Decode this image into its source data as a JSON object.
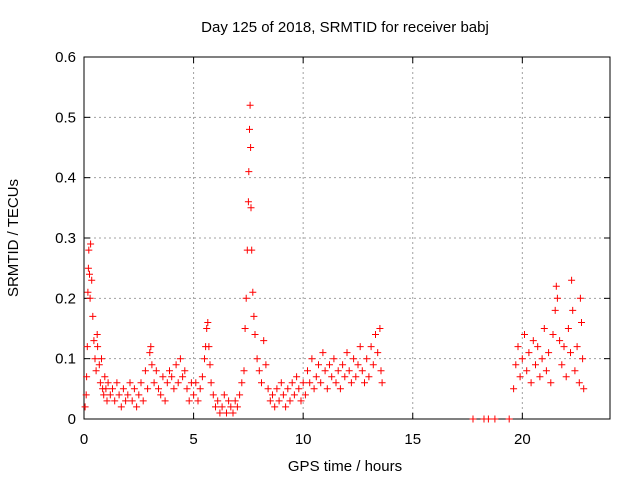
{
  "chart_data": {
    "type": "scatter",
    "title": "Day 125 of 2018, SRMTID for receiver babj",
    "xlabel": "GPS time / hours",
    "ylabel": "SRMTID / TECUs",
    "xlim": [
      0,
      24
    ],
    "ylim": [
      0,
      0.6
    ],
    "xticks": [
      0,
      5,
      10,
      15,
      20
    ],
    "xtick_labels": [
      "0",
      "5",
      "10",
      "15",
      "20"
    ],
    "yticks": [
      0,
      0.1,
      0.2,
      0.3,
      0.4,
      0.5,
      0.6
    ],
    "ytick_labels": [
      "0",
      "0.1",
      "0.2",
      "0.3",
      "0.4",
      "0.5",
      "0.6"
    ],
    "grid": true,
    "marker": "+",
    "colors": {
      "series": "#ff0000",
      "grid": "#a0a0a0",
      "axis": "#000000"
    },
    "series": [
      {
        "name": "SRMTID",
        "points": [
          [
            0.05,
            0.02
          ],
          [
            0.1,
            0.04
          ],
          [
            0.12,
            0.07
          ],
          [
            0.15,
            0.12
          ],
          [
            0.18,
            0.21
          ],
          [
            0.2,
            0.25
          ],
          [
            0.22,
            0.28
          ],
          [
            0.25,
            0.24
          ],
          [
            0.28,
            0.2
          ],
          [
            0.3,
            0.29
          ],
          [
            0.35,
            0.23
          ],
          [
            0.4,
            0.17
          ],
          [
            0.45,
            0.13
          ],
          [
            0.5,
            0.1
          ],
          [
            0.55,
            0.08
          ],
          [
            0.6,
            0.14
          ],
          [
            0.62,
            0.12
          ],
          [
            0.7,
            0.09
          ],
          [
            0.75,
            0.06
          ],
          [
            0.8,
            0.1
          ],
          [
            0.85,
            0.05
          ],
          [
            0.9,
            0.04
          ],
          [
            0.95,
            0.07
          ],
          [
            1.0,
            0.05
          ],
          [
            1.05,
            0.03
          ],
          [
            1.1,
            0.06
          ],
          [
            1.2,
            0.04
          ],
          [
            1.3,
            0.05
          ],
          [
            1.4,
            0.03
          ],
          [
            1.5,
            0.06
          ],
          [
            1.6,
            0.04
          ],
          [
            1.7,
            0.02
          ],
          [
            1.8,
            0.05
          ],
          [
            1.9,
            0.03
          ],
          [
            2.0,
            0.04
          ],
          [
            2.1,
            0.06
          ],
          [
            2.2,
            0.03
          ],
          [
            2.3,
            0.05
          ],
          [
            2.4,
            0.02
          ],
          [
            2.5,
            0.04
          ],
          [
            2.6,
            0.06
          ],
          [
            2.7,
            0.03
          ],
          [
            2.8,
            0.08
          ],
          [
            2.9,
            0.05
          ],
          [
            3.0,
            0.11
          ],
          [
            3.05,
            0.12
          ],
          [
            3.1,
            0.09
          ],
          [
            3.2,
            0.06
          ],
          [
            3.3,
            0.08
          ],
          [
            3.4,
            0.05
          ],
          [
            3.5,
            0.04
          ],
          [
            3.6,
            0.07
          ],
          [
            3.7,
            0.03
          ],
          [
            3.8,
            0.06
          ],
          [
            3.9,
            0.08
          ],
          [
            4.0,
            0.07
          ],
          [
            4.1,
            0.05
          ],
          [
            4.2,
            0.09
          ],
          [
            4.3,
            0.06
          ],
          [
            4.4,
            0.1
          ],
          [
            4.5,
            0.07
          ],
          [
            4.6,
            0.08
          ],
          [
            4.7,
            0.05
          ],
          [
            4.8,
            0.03
          ],
          [
            4.9,
            0.06
          ],
          [
            5.0,
            0.04
          ],
          [
            5.1,
            0.06
          ],
          [
            5.2,
            0.03
          ],
          [
            5.3,
            0.05
          ],
          [
            5.4,
            0.07
          ],
          [
            5.5,
            0.1
          ],
          [
            5.55,
            0.12
          ],
          [
            5.6,
            0.15
          ],
          [
            5.65,
            0.16
          ],
          [
            5.7,
            0.12
          ],
          [
            5.75,
            0.09
          ],
          [
            5.8,
            0.06
          ],
          [
            5.9,
            0.04
          ],
          [
            6.0,
            0.02
          ],
          [
            6.1,
            0.03
          ],
          [
            6.2,
            0.01
          ],
          [
            6.3,
            0.02
          ],
          [
            6.4,
            0.04
          ],
          [
            6.5,
            0.01
          ],
          [
            6.6,
            0.03
          ],
          [
            6.7,
            0.02
          ],
          [
            6.8,
            0.01
          ],
          [
            6.9,
            0.03
          ],
          [
            7.0,
            0.02
          ],
          [
            7.1,
            0.04
          ],
          [
            7.2,
            0.06
          ],
          [
            7.3,
            0.08
          ],
          [
            7.35,
            0.15
          ],
          [
            7.4,
            0.2
          ],
          [
            7.45,
            0.28
          ],
          [
            7.5,
            0.36
          ],
          [
            7.52,
            0.41
          ],
          [
            7.55,
            0.48
          ],
          [
            7.58,
            0.52
          ],
          [
            7.6,
            0.45
          ],
          [
            7.62,
            0.35
          ],
          [
            7.65,
            0.28
          ],
          [
            7.7,
            0.21
          ],
          [
            7.75,
            0.17
          ],
          [
            7.8,
            0.14
          ],
          [
            7.9,
            0.1
          ],
          [
            8.0,
            0.08
          ],
          [
            8.1,
            0.06
          ],
          [
            8.2,
            0.13
          ],
          [
            8.3,
            0.09
          ],
          [
            8.4,
            0.05
          ],
          [
            8.5,
            0.03
          ],
          [
            8.6,
            0.04
          ],
          [
            8.7,
            0.02
          ],
          [
            8.8,
            0.05
          ],
          [
            8.9,
            0.03
          ],
          [
            9.0,
            0.06
          ],
          [
            9.1,
            0.04
          ],
          [
            9.2,
            0.02
          ],
          [
            9.3,
            0.05
          ],
          [
            9.4,
            0.03
          ],
          [
            9.5,
            0.06
          ],
          [
            9.6,
            0.04
          ],
          [
            9.7,
            0.07
          ],
          [
            9.8,
            0.05
          ],
          [
            9.9,
            0.03
          ],
          [
            10.0,
            0.06
          ],
          [
            10.1,
            0.04
          ],
          [
            10.2,
            0.08
          ],
          [
            10.3,
            0.06
          ],
          [
            10.4,
            0.1
          ],
          [
            10.5,
            0.05
          ],
          [
            10.6,
            0.07
          ],
          [
            10.7,
            0.09
          ],
          [
            10.8,
            0.06
          ],
          [
            10.9,
            0.11
          ],
          [
            11.0,
            0.08
          ],
          [
            11.1,
            0.05
          ],
          [
            11.2,
            0.09
          ],
          [
            11.3,
            0.07
          ],
          [
            11.4,
            0.1
          ],
          [
            11.5,
            0.06
          ],
          [
            11.6,
            0.08
          ],
          [
            11.7,
            0.05
          ],
          [
            11.8,
            0.09
          ],
          [
            11.9,
            0.07
          ],
          [
            12.0,
            0.11
          ],
          [
            12.1,
            0.08
          ],
          [
            12.2,
            0.06
          ],
          [
            12.3,
            0.1
          ],
          [
            12.4,
            0.07
          ],
          [
            12.5,
            0.09
          ],
          [
            12.6,
            0.12
          ],
          [
            12.7,
            0.08
          ],
          [
            12.8,
            0.06
          ],
          [
            12.9,
            0.1
          ],
          [
            13.0,
            0.07
          ],
          [
            13.1,
            0.12
          ],
          [
            13.2,
            0.09
          ],
          [
            13.3,
            0.14
          ],
          [
            13.4,
            0.11
          ],
          [
            13.5,
            0.15
          ],
          [
            13.55,
            0.08
          ],
          [
            13.6,
            0.06
          ],
          [
            17.75,
            0.0
          ],
          [
            18.25,
            0.0
          ],
          [
            18.45,
            0.0
          ],
          [
            18.75,
            0.0
          ],
          [
            19.4,
            0.0
          ],
          [
            19.6,
            0.05
          ],
          [
            19.7,
            0.09
          ],
          [
            19.8,
            0.12
          ],
          [
            19.9,
            0.07
          ],
          [
            20.0,
            0.1
          ],
          [
            20.1,
            0.14
          ],
          [
            20.2,
            0.08
          ],
          [
            20.3,
            0.11
          ],
          [
            20.4,
            0.06
          ],
          [
            20.5,
            0.13
          ],
          [
            20.6,
            0.09
          ],
          [
            20.7,
            0.12
          ],
          [
            20.8,
            0.07
          ],
          [
            20.9,
            0.1
          ],
          [
            21.0,
            0.15
          ],
          [
            21.1,
            0.08
          ],
          [
            21.2,
            0.11
          ],
          [
            21.3,
            0.06
          ],
          [
            21.4,
            0.14
          ],
          [
            21.5,
            0.18
          ],
          [
            21.55,
            0.22
          ],
          [
            21.6,
            0.2
          ],
          [
            21.7,
            0.13
          ],
          [
            21.8,
            0.09
          ],
          [
            21.9,
            0.12
          ],
          [
            22.0,
            0.07
          ],
          [
            22.1,
            0.15
          ],
          [
            22.2,
            0.11
          ],
          [
            22.25,
            0.23
          ],
          [
            22.3,
            0.18
          ],
          [
            22.4,
            0.08
          ],
          [
            22.5,
            0.12
          ],
          [
            22.6,
            0.06
          ],
          [
            22.65,
            0.2
          ],
          [
            22.7,
            0.16
          ],
          [
            22.75,
            0.1
          ],
          [
            22.8,
            0.05
          ]
        ]
      }
    ]
  }
}
